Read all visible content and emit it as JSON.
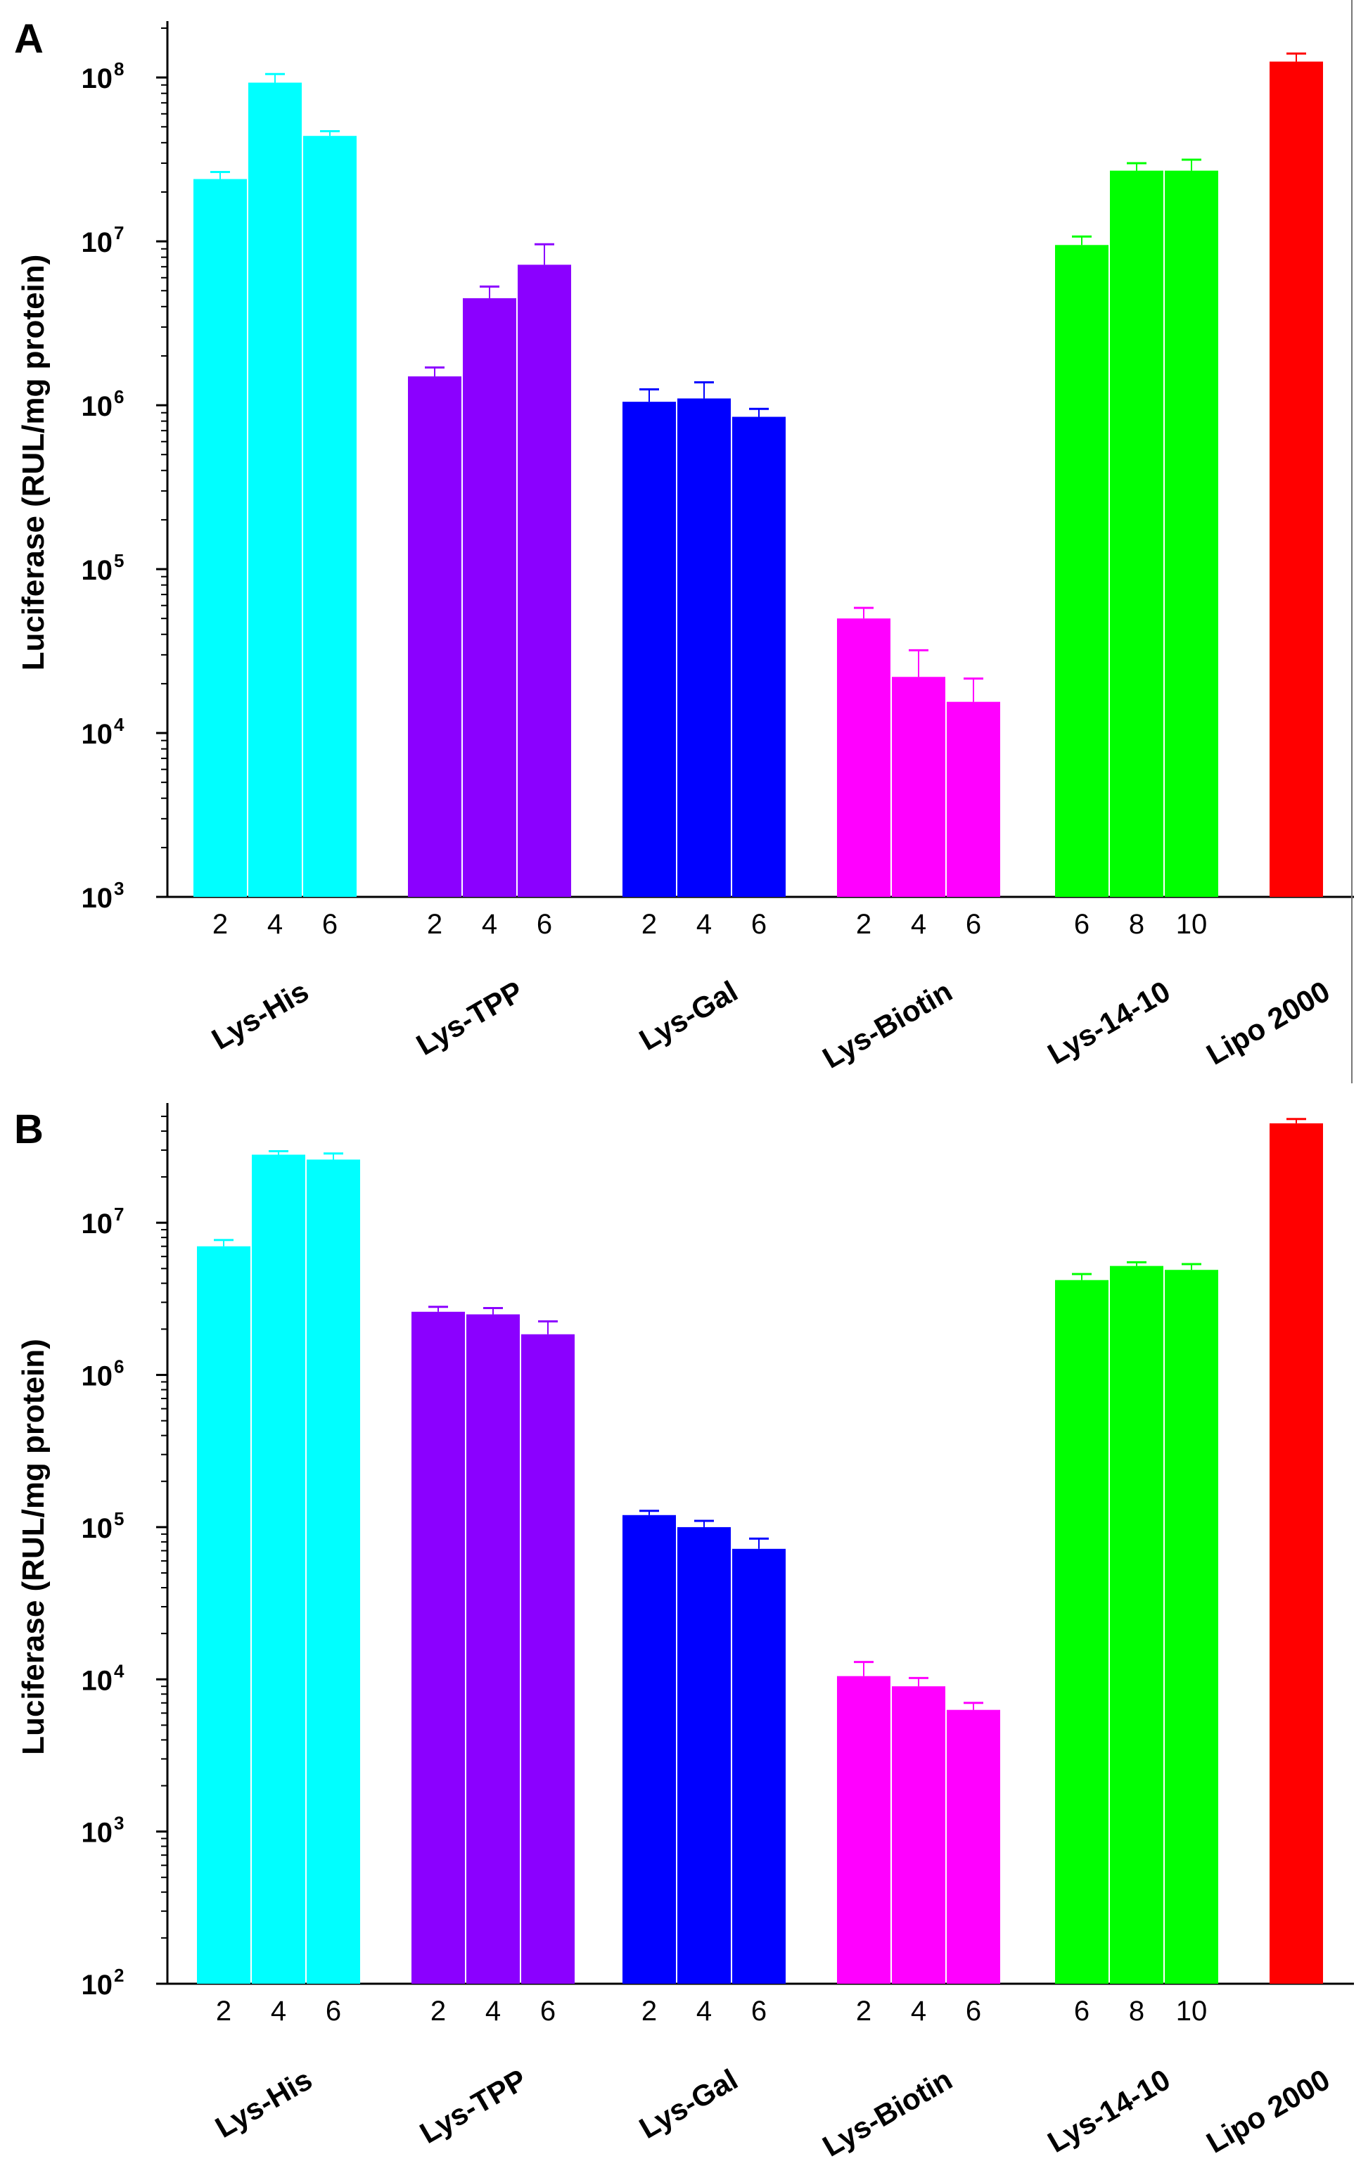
{
  "chart_data": [
    {
      "panel": "A",
      "type": "bar",
      "scale": "log",
      "ylabel": "Luciferase (RUL/mg protein)",
      "ylim": [
        1000,
        200000000
      ],
      "ytick_exponents": [
        3,
        4,
        5,
        6,
        7,
        8
      ],
      "groups": [
        {
          "name": "Lys-His",
          "color": "#00ffff",
          "labels": [
            "2",
            "4",
            "6"
          ],
          "values": [
            24000000,
            93000000,
            44000000
          ],
          "errors": [
            2500000,
            12000000,
            3000000
          ]
        },
        {
          "name": "Lys-TPP",
          "color": "#8b00ff",
          "labels": [
            "2",
            "4",
            "6"
          ],
          "values": [
            1500000,
            4500000,
            7200000
          ],
          "errors": [
            200000,
            800000,
            2400000
          ]
        },
        {
          "name": "Lys-Gal",
          "color": "#0000ff",
          "labels": [
            "2",
            "4",
            "6"
          ],
          "values": [
            1050000,
            1100000,
            850000
          ],
          "errors": [
            200000,
            280000,
            100000
          ]
        },
        {
          "name": "Lys-Biotin",
          "color": "#ff00ff",
          "labels": [
            "2",
            "4",
            "6"
          ],
          "values": [
            50000,
            22000,
            15500
          ],
          "errors": [
            8000,
            10000,
            6000
          ]
        },
        {
          "name": "Lys-14-10",
          "color": "#00ff00",
          "labels": [
            "6",
            "8",
            "10"
          ],
          "values": [
            9500000,
            27000000,
            27000000
          ],
          "errors": [
            1200000,
            3000000,
            4500000
          ]
        },
        {
          "name": "Lipo 2000",
          "color": "#ff0000",
          "labels": [],
          "values": [
            125000000
          ],
          "errors": [
            15000000
          ]
        }
      ]
    },
    {
      "panel": "B",
      "type": "bar",
      "scale": "log",
      "ylabel": "Luciferase (RUL/mg protein)",
      "ylim": [
        100,
        55000000
      ],
      "ytick_exponents": [
        2,
        3,
        4,
        5,
        6,
        7
      ],
      "groups": [
        {
          "name": "Lys-His",
          "color": "#00ffff",
          "labels": [
            "2",
            "4",
            "6"
          ],
          "values": [
            7000000,
            28000000,
            26000000
          ],
          "errors": [
            700000,
            1500000,
            2500000
          ]
        },
        {
          "name": "Lys-TPP",
          "color": "#8b00ff",
          "labels": [
            "2",
            "4",
            "6"
          ],
          "values": [
            2600000,
            2500000,
            1850000
          ],
          "errors": [
            200000,
            250000,
            400000
          ]
        },
        {
          "name": "Lys-Gal",
          "color": "#0000ff",
          "labels": [
            "2",
            "4",
            "6"
          ],
          "values": [
            120000,
            100000,
            72000
          ],
          "errors": [
            8000,
            10000,
            12000
          ]
        },
        {
          "name": "Lys-Biotin",
          "color": "#ff00ff",
          "labels": [
            "2",
            "4",
            "6"
          ],
          "values": [
            10500,
            9000,
            6300
          ],
          "errors": [
            2500,
            1200,
            700
          ]
        },
        {
          "name": "Lys-14-10",
          "color": "#00ff00",
          "labels": [
            "6",
            "8",
            "10"
          ],
          "values": [
            4200000,
            5200000,
            4900000
          ],
          "errors": [
            400000,
            300000,
            450000
          ]
        },
        {
          "name": "Lipo 2000",
          "color": "#ff0000",
          "labels": [],
          "values": [
            45000000
          ],
          "errors": [
            3000000
          ]
        }
      ]
    }
  ]
}
